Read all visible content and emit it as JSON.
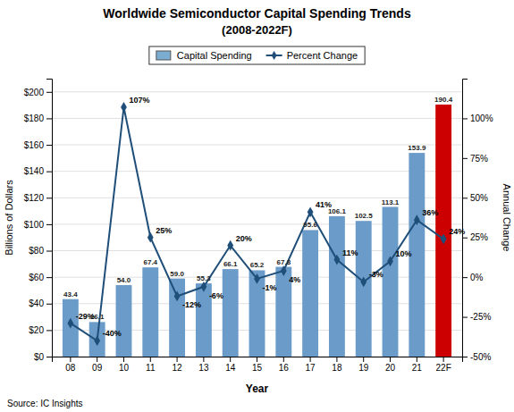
{
  "chart_data": {
    "type": "bar",
    "title": "Worldwide Semiconductor Capital Spending Trends",
    "subtitle": "(2008-2022F)",
    "x_label": "Year",
    "y_label": "Billions of Dollars",
    "y2_label": "Annual Change",
    "source": "Source: IC Insights",
    "categories": [
      "08",
      "09",
      "10",
      "11",
      "12",
      "13",
      "14",
      "15",
      "16",
      "17",
      "18",
      "19",
      "20",
      "21",
      "22F"
    ],
    "series": [
      {
        "name": "Capital Spending",
        "type": "bar",
        "color": "#7badd1",
        "colors": [
          "#6b9bc9",
          "#6b9bc9",
          "#6b9bc9",
          "#6b9bc9",
          "#6b9bc9",
          "#6b9bc9",
          "#6b9bc9",
          "#6b9bc9",
          "#6b9bc9",
          "#6b9bc9",
          "#6b9bc9",
          "#6b9bc9",
          "#6b9bc9",
          "#6b9bc9",
          "#cc0000"
        ],
        "values": [
          43.4,
          26.1,
          54.0,
          67.4,
          59.0,
          55.3,
          66.1,
          65.2,
          67.8,
          95.6,
          106.1,
          102.5,
          113.1,
          153.9,
          190.4
        ],
        "value_labels": [
          "43.4",
          "26.1",
          "54.0",
          "67.4",
          "59.0",
          "55.3",
          "66.1",
          "65.2",
          "67.8",
          "95.6",
          "106.1",
          "102.5",
          "113.1",
          "153.9",
          "190.4"
        ]
      },
      {
        "name": "Percent Change",
        "type": "line",
        "axis": "y2",
        "color": "#1f4e79",
        "marker": "diamond",
        "values": [
          -29,
          -40,
          107,
          25,
          -12,
          -6,
          20,
          -1,
          4,
          41,
          11,
          -3,
          10,
          36,
          24
        ],
        "value_labels": [
          "-29%",
          "-40%",
          "107%",
          "25%",
          "-12%",
          "-6%",
          "20%",
          "-1%",
          "4%",
          "41%",
          "11%",
          "-3%",
          "10%",
          "36%",
          "24%"
        ]
      }
    ],
    "ylim": [
      0,
      210
    ],
    "yticks": [
      {
        "value": 0,
        "label": "$0"
      },
      {
        "value": 20,
        "label": "$20"
      },
      {
        "value": 40,
        "label": "$40"
      },
      {
        "value": 60,
        "label": "$60"
      },
      {
        "value": 80,
        "label": "$80"
      },
      {
        "value": 100,
        "label": "$100"
      },
      {
        "value": 120,
        "label": "$120"
      },
      {
        "value": 140,
        "label": "$140"
      },
      {
        "value": 160,
        "label": "$160"
      },
      {
        "value": 180,
        "label": "$180"
      },
      {
        "value": 200,
        "label": "$200"
      }
    ],
    "y2lim": [
      -50,
      125
    ],
    "y2ticks": [
      {
        "value": -50,
        "label": "-50%"
      },
      {
        "value": -25,
        "label": "-25%"
      },
      {
        "value": 0,
        "label": "0%"
      },
      {
        "value": 25,
        "label": "25%"
      },
      {
        "value": 50,
        "label": "50%"
      },
      {
        "value": 75,
        "label": "75%"
      },
      {
        "value": 100,
        "label": "100%"
      }
    ],
    "grid": true,
    "legend": "top",
    "data_labels": true
  }
}
